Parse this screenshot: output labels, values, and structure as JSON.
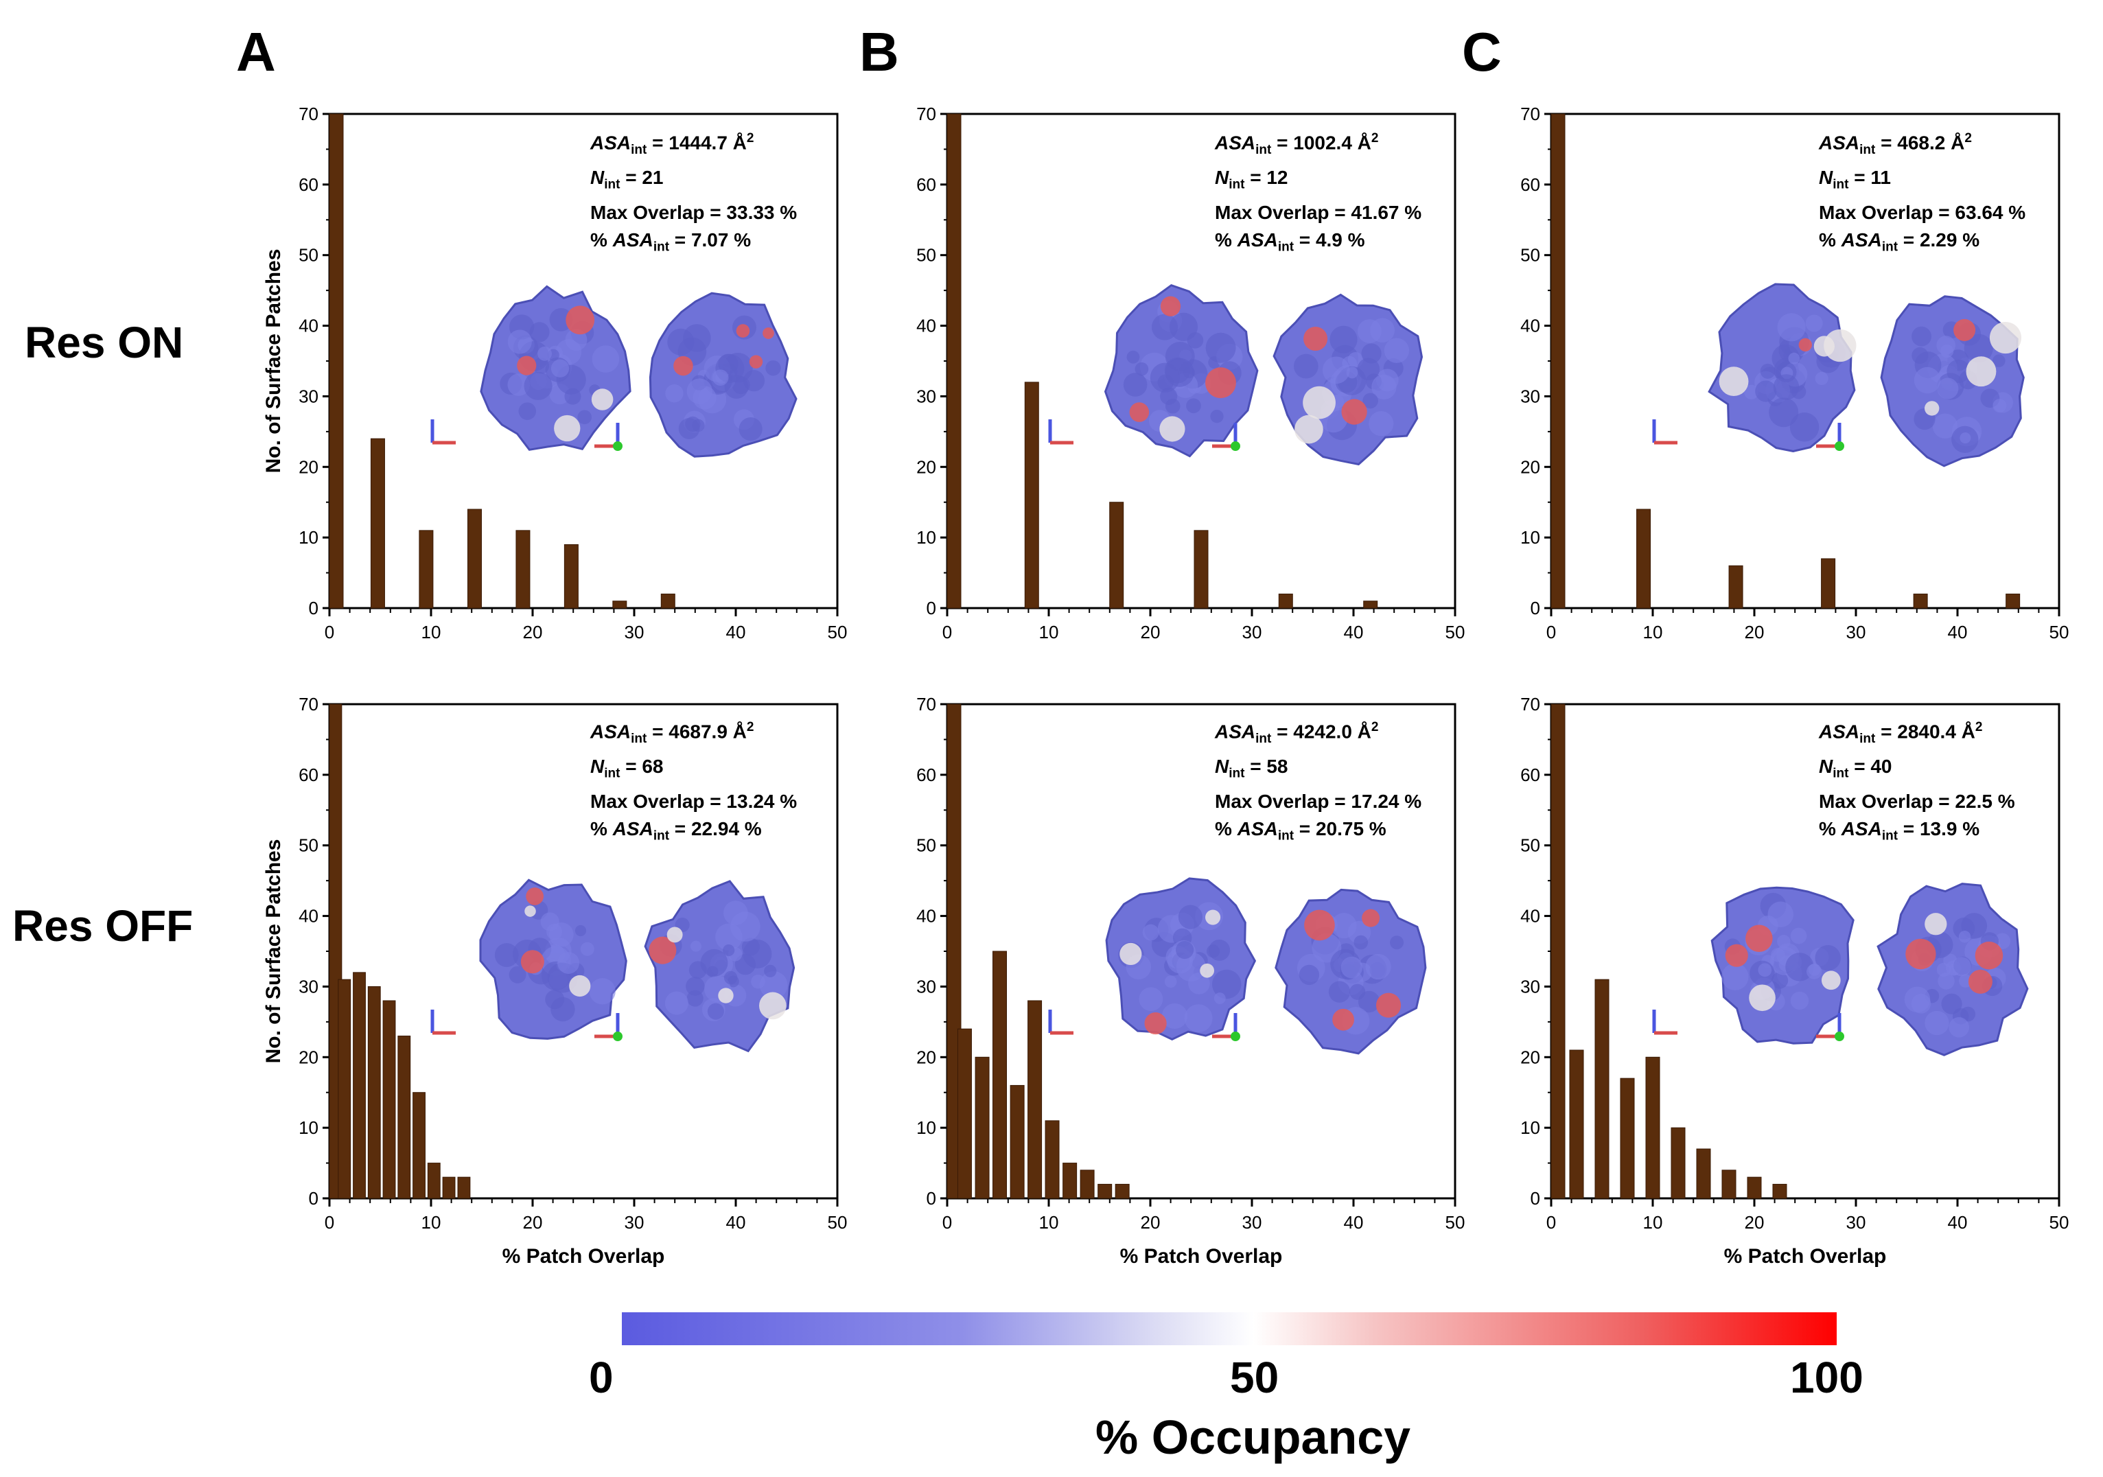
{
  "panels": {
    "A": "A",
    "B": "B",
    "C": "C"
  },
  "rows": {
    "on": "Res ON",
    "off": "Res OFF"
  },
  "colors": {
    "bar": "#5a2d0c",
    "protein": "#6f72d8",
    "hot": "#e35a5a"
  },
  "colorbar": {
    "ticks": [
      "0",
      "50",
      "100"
    ],
    "title": "% Occupancy"
  },
  "chart_data": [
    {
      "id": "A-on",
      "type": "bar",
      "xlabel": "",
      "ylabel": "No. of Surface Patches",
      "xlim": [
        0,
        50
      ],
      "ylim": [
        0,
        70
      ],
      "xticks": [
        "0",
        "10",
        "20",
        "30",
        "40",
        "50"
      ],
      "yticks": [
        "0",
        "10",
        "20",
        "30",
        "40",
        "50",
        "60",
        "70"
      ],
      "x": [
        0,
        4.76,
        9.52,
        14.29,
        19.05,
        23.81,
        28.57,
        33.33
      ],
      "values": [
        70,
        24,
        11,
        14,
        11,
        9,
        1,
        2
      ],
      "info": {
        "asa_label": "ASA",
        "asa_sub": "int",
        "asa_value": " = 1444.7 Å",
        "asa_sup": "2",
        "n_label": "N",
        "n_sub": "int",
        "n_value": " = 21",
        "overlap": "Max Overlap = 33.33 %",
        "pct_label": "% ASA",
        "pct_sub": "int",
        "pct_value": " = 7.07 %"
      }
    },
    {
      "id": "B-on",
      "type": "bar",
      "xlabel": "",
      "ylabel": "",
      "xlim": [
        0,
        50
      ],
      "ylim": [
        0,
        70
      ],
      "xticks": [
        "0",
        "10",
        "20",
        "30",
        "40",
        "50"
      ],
      "yticks": [
        "0",
        "10",
        "20",
        "30",
        "40",
        "50",
        "60",
        "70"
      ],
      "x": [
        0,
        8.33,
        16.67,
        25,
        33.33,
        41.67
      ],
      "values": [
        70,
        32,
        15,
        11,
        2,
        1
      ],
      "info": {
        "asa_label": "ASA",
        "asa_sub": "int",
        "asa_value": " = 1002.4 Å",
        "asa_sup": "2",
        "n_label": "N",
        "n_sub": "int",
        "n_value": " = 12",
        "overlap": "Max Overlap = 41.67 %",
        "pct_label": "% ASA",
        "pct_sub": "int",
        "pct_value": " = 4.9 %"
      }
    },
    {
      "id": "C-on",
      "type": "bar",
      "xlabel": "",
      "ylabel": "",
      "xlim": [
        0,
        50
      ],
      "ylim": [
        0,
        70
      ],
      "xticks": [
        "0",
        "10",
        "20",
        "30",
        "40",
        "50"
      ],
      "yticks": [
        "0",
        "10",
        "20",
        "30",
        "40",
        "50",
        "60",
        "70"
      ],
      "x": [
        0,
        9.09,
        18.18,
        27.27,
        36.36,
        45.45
      ],
      "values": [
        70,
        14,
        6,
        7,
        2,
        2
      ],
      "info": {
        "asa_label": "ASA",
        "asa_sub": "int",
        "asa_value": " = 468.2 Å",
        "asa_sup": "2",
        "n_label": "N",
        "n_sub": "int",
        "n_value": " = 11",
        "overlap": "Max Overlap = 63.64 %",
        "pct_label": "% ASA",
        "pct_sub": "int",
        "pct_value": " = 2.29 %"
      }
    },
    {
      "id": "A-off",
      "type": "bar",
      "xlabel": "% Patch Overlap",
      "ylabel": "No. of Surface Patches",
      "xlim": [
        0,
        50
      ],
      "ylim": [
        0,
        70
      ],
      "xticks": [
        "0",
        "10",
        "20",
        "30",
        "40",
        "50"
      ],
      "yticks": [
        "0",
        "10",
        "20",
        "30",
        "40",
        "50",
        "60",
        "70"
      ],
      "x": [
        0,
        1.47,
        2.94,
        4.41,
        5.88,
        7.35,
        8.82,
        10.29,
        11.76,
        13.24
      ],
      "values": [
        70,
        31,
        32,
        30,
        28,
        23,
        15,
        5,
        3,
        3
      ],
      "info": {
        "asa_label": "ASA",
        "asa_sub": "int",
        "asa_value": " = 4687.9 Å",
        "asa_sup": "2",
        "n_label": "N",
        "n_sub": "int",
        "n_value": " = 68",
        "overlap": "Max Overlap = 13.24 %",
        "pct_label": "% ASA",
        "pct_sub": "int",
        "pct_value": " = 22.94 %"
      }
    },
    {
      "id": "B-off",
      "type": "bar",
      "xlabel": "% Patch Overlap",
      "ylabel": "",
      "xlim": [
        0,
        50
      ],
      "ylim": [
        0,
        70
      ],
      "xticks": [
        "0",
        "10",
        "20",
        "30",
        "40",
        "50"
      ],
      "yticks": [
        "0",
        "10",
        "20",
        "30",
        "40",
        "50",
        "60",
        "70"
      ],
      "x": [
        0,
        1.72,
        3.45,
        5.17,
        6.9,
        8.62,
        10.34,
        12.07,
        13.79,
        15.52,
        17.24
      ],
      "values": [
        70,
        24,
        20,
        35,
        16,
        28,
        11,
        5,
        4,
        2,
        2
      ],
      "info": {
        "asa_label": "ASA",
        "asa_sub": "int",
        "asa_value": " = 4242.0 Å",
        "asa_sup": "2",
        "n_label": "N",
        "n_sub": "int",
        "n_value": " = 58",
        "overlap": "Max Overlap = 17.24 %",
        "pct_label": "% ASA",
        "pct_sub": "int",
        "pct_value": " = 20.75 %"
      }
    },
    {
      "id": "C-off",
      "type": "bar",
      "xlabel": "% Patch Overlap",
      "ylabel": "",
      "xlim": [
        0,
        50
      ],
      "ylim": [
        0,
        70
      ],
      "xticks": [
        "0",
        "10",
        "20",
        "30",
        "40",
        "50"
      ],
      "yticks": [
        "0",
        "10",
        "20",
        "30",
        "40",
        "50",
        "60",
        "70"
      ],
      "x": [
        0,
        2.5,
        5,
        7.5,
        10,
        12.5,
        15,
        17.5,
        20,
        22.5
      ],
      "values": [
        70,
        21,
        31,
        17,
        20,
        10,
        7,
        4,
        3,
        2
      ],
      "info": {
        "asa_label": "ASA",
        "asa_sub": "int",
        "asa_value": " = 2840.4 Å",
        "asa_sup": "2",
        "n_label": "N",
        "n_sub": "int",
        "n_value": " = 40",
        "overlap": "Max Overlap = 22.5 %",
        "pct_label": "% ASA",
        "pct_sub": "int",
        "pct_value": " = 13.9 %"
      }
    }
  ]
}
